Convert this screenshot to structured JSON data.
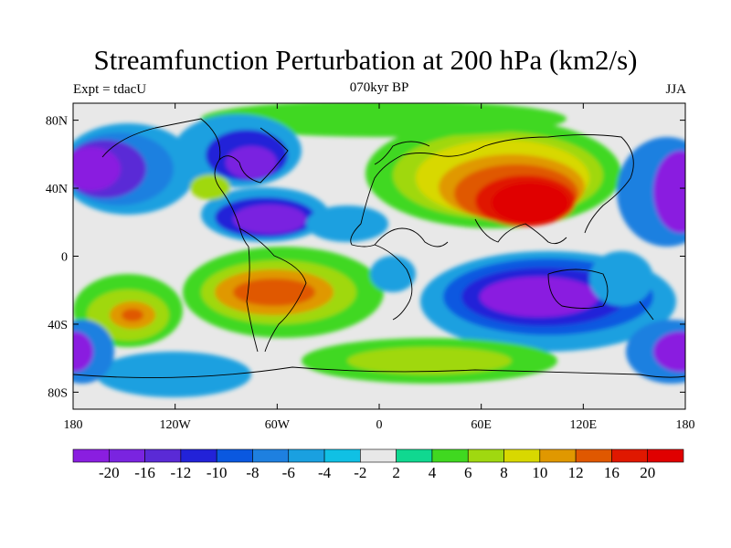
{
  "title": "Streamfunction Perturbation at 200 hPa (km2/s)",
  "subtitle_left": "Expt = tdacU",
  "subtitle_center": "070kyr BP",
  "subtitle_right": "JJA",
  "map": {
    "projection": "cylindrical equidistant",
    "lon_range": [
      -180,
      180
    ],
    "lat_range": [
      -90,
      90
    ],
    "x_ticks": [
      "180",
      "120W",
      "60W",
      "0",
      "60E",
      "120E",
      "180"
    ],
    "y_ticks": [
      "80N",
      "40N",
      "0",
      "40S",
      "80S"
    ],
    "background_color": "#e8e8e8",
    "features": [
      {
        "name": "Eurasian high",
        "lon": 80,
        "lat": 35,
        "value": 22
      },
      {
        "name": "South Atlantic high",
        "lon": -55,
        "lat": -22,
        "value": 14
      },
      {
        "name": "South Pacific high",
        "lon": -140,
        "lat": -35,
        "value": 15
      },
      {
        "name": "Indian Ocean low",
        "lon": 95,
        "lat": -28,
        "value": -20
      },
      {
        "name": "North Atlantic low",
        "lon": -75,
        "lat": 25,
        "value": -16
      },
      {
        "name": "North Pacific low",
        "lon": -170,
        "lat": 50,
        "value": -18
      },
      {
        "name": "West Pacific low",
        "lon": 170,
        "lat": 45,
        "value": -18
      },
      {
        "name": "SW Pacific low",
        "lon": 175,
        "lat": -55,
        "value": -18
      }
    ]
  },
  "colorbar": {
    "labels": [
      "-20",
      "-16",
      "-12",
      "-10",
      "-8",
      "-6",
      "-4",
      "-2",
      "2",
      "4",
      "6",
      "8",
      "10",
      "12",
      "16",
      "20"
    ],
    "colors": [
      "#8a1ee0",
      "#7a24e0",
      "#5a2ad6",
      "#2222d8",
      "#0a58e0",
      "#1e80e0",
      "#1aa0e0",
      "#10c0e4",
      "#e8e8e8",
      "#10d890",
      "#40d820",
      "#a0d810",
      "#d8d800",
      "#e09800",
      "#e05800",
      "#e01800",
      "#e00000"
    ]
  }
}
